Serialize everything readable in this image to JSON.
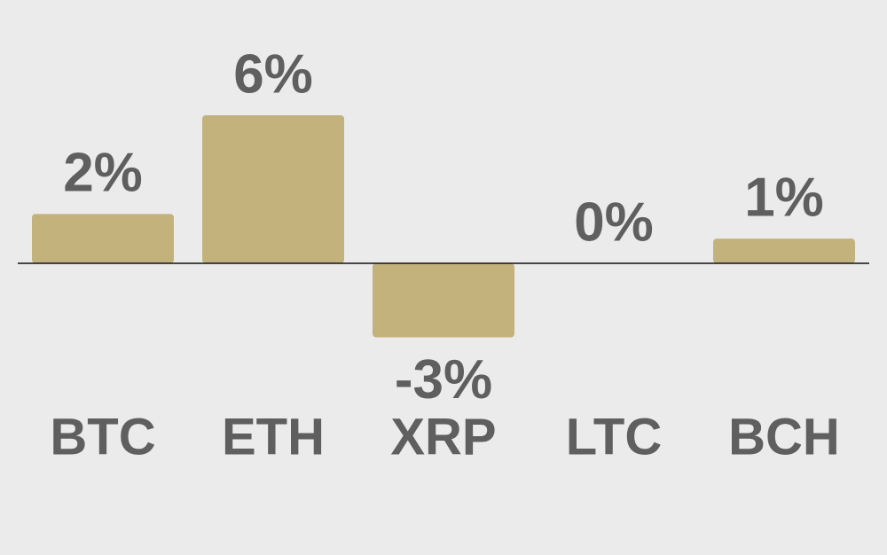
{
  "chart_data": {
    "type": "bar",
    "categories": [
      "BTC",
      "ETH",
      "XRP",
      "LTC",
      "BCH"
    ],
    "values": [
      2,
      6,
      -3,
      0,
      1
    ],
    "value_labels": [
      "2%",
      "6%",
      "-3%",
      "0%",
      "1%"
    ],
    "color": "#c4b27d"
  }
}
